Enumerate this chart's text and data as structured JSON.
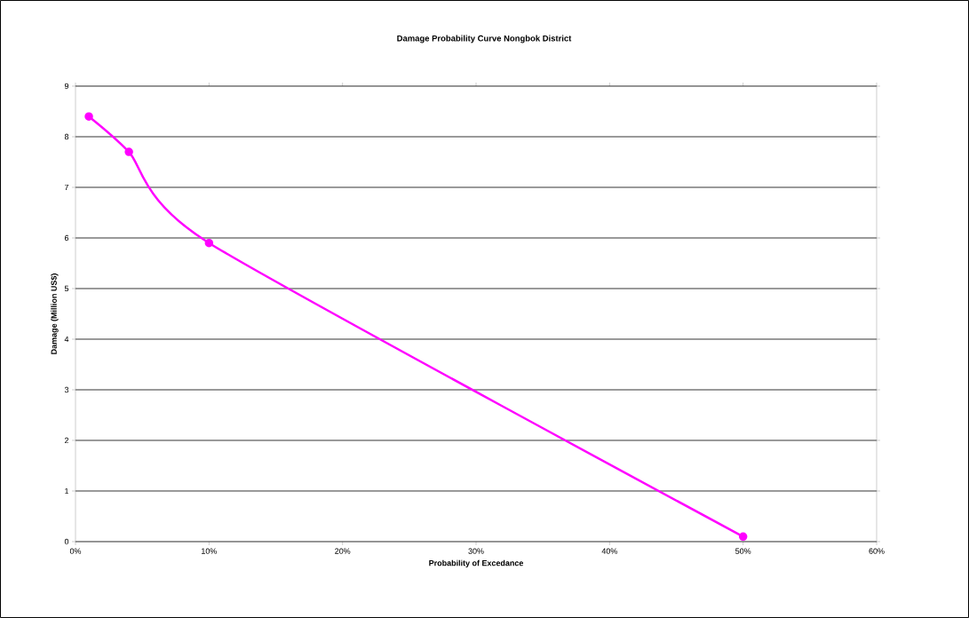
{
  "chart_data": {
    "type": "line",
    "title": "Damage Probability Curve Nongbok District",
    "xlabel": "Probability of Excedance",
    "ylabel": "Damage (Million US$)",
    "x": [
      1,
      4,
      10,
      50
    ],
    "series": [
      {
        "color": "#ff00ff",
        "values": [
          8.4,
          7.7,
          5.9,
          0.1
        ]
      }
    ],
    "xlim": [
      0,
      60
    ],
    "ylim": [
      0,
      9
    ],
    "xticks": [
      {
        "value": 0,
        "label": "0%"
      },
      {
        "value": 10,
        "label": "10%"
      },
      {
        "value": 20,
        "label": "20%"
      },
      {
        "value": 30,
        "label": "30%"
      },
      {
        "value": 40,
        "label": "40%"
      },
      {
        "value": 50,
        "label": "50%"
      },
      {
        "value": 60,
        "label": "60%"
      }
    ],
    "yticks": [
      0,
      1,
      2,
      3,
      4,
      5,
      6,
      7,
      8,
      9
    ],
    "grid": "y",
    "marker": "circle",
    "line_style": "solid"
  }
}
